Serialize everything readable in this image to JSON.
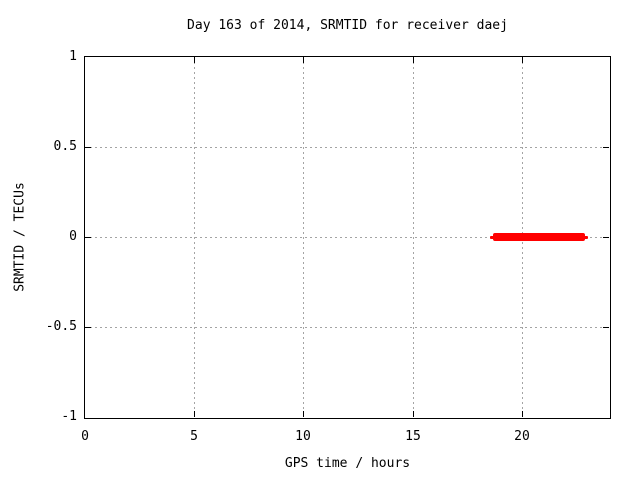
{
  "figure": {
    "background_color": "#ffffff",
    "text_color": "#000000",
    "border_color": "#000000",
    "grid_color": "#a4a4a4"
  },
  "chart_data": {
    "type": "line",
    "title": "Day 163 of 2014, SRMTID for receiver daej",
    "xlabel": "GPS time / hours",
    "ylabel": "SRMTID / TECUs",
    "xlim": [
      0,
      24
    ],
    "ylim": [
      -1,
      1
    ],
    "xticks": [
      {
        "value": 0,
        "label": "0"
      },
      {
        "value": 5,
        "label": "5"
      },
      {
        "value": 10,
        "label": "10"
      },
      {
        "value": 15,
        "label": "15"
      },
      {
        "value": 20,
        "label": "20"
      }
    ],
    "yticks": [
      {
        "value": -1,
        "label": "-1"
      },
      {
        "value": -0.5,
        "label": "-0.5"
      },
      {
        "value": 0,
        "label": "0"
      },
      {
        "value": 0.5,
        "label": "0.5"
      },
      {
        "value": 1,
        "label": "1"
      }
    ],
    "grid": true,
    "grid_style": "dashed",
    "legend": "none",
    "series": [
      {
        "name": "SRMTID",
        "color": "#ff0000",
        "style": "thick horizontal segment",
        "segments": [
          {
            "x_start": 18.7,
            "x_end": 22.9,
            "y": 0.0
          }
        ]
      }
    ]
  }
}
